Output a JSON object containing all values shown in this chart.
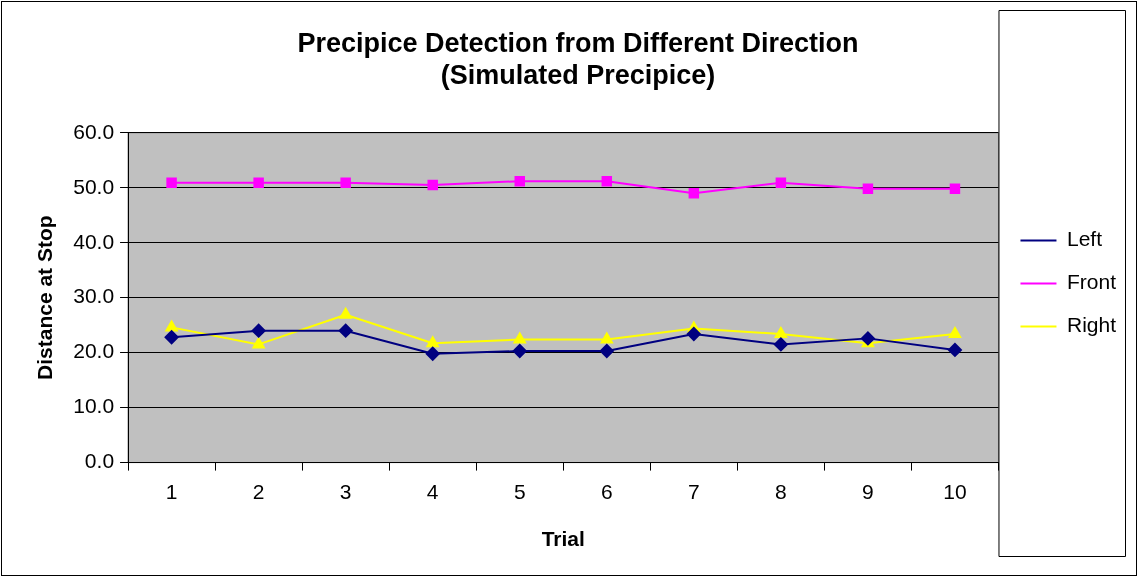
{
  "chart_data": {
    "type": "line",
    "title": [
      "Precipice Detection from Different Direction",
      "(Simulated Precipice)"
    ],
    "xlabel": "Trial",
    "ylabel": "Distance at Stop",
    "categories": [
      "1",
      "2",
      "3",
      "4",
      "5",
      "6",
      "7",
      "8",
      "9",
      "10"
    ],
    "series": [
      {
        "name": "Left",
        "color": "#000080",
        "marker": "diamond",
        "values": [
          22.8,
          24.0,
          24.0,
          19.8,
          20.3,
          20.3,
          23.4,
          21.5,
          22.6,
          20.5
        ]
      },
      {
        "name": "Front",
        "color": "#ff00ff",
        "marker": "square",
        "values": [
          50.9,
          50.9,
          50.9,
          50.5,
          51.2,
          51.2,
          49.0,
          50.9,
          49.8,
          49.8
        ]
      },
      {
        "name": "Right",
        "color": "#ffff00",
        "marker": "triangle",
        "values": [
          24.6,
          21.5,
          26.9,
          21.7,
          22.4,
          22.4,
          24.4,
          23.4,
          21.7,
          23.4
        ]
      }
    ],
    "ylim": [
      0,
      60
    ],
    "yticks": [
      {
        "value": 0,
        "label": "0.0"
      },
      {
        "value": 10,
        "label": "10.0"
      },
      {
        "value": 20,
        "label": "20.0"
      },
      {
        "value": 30,
        "label": "30.0"
      },
      {
        "value": 40,
        "label": "40.0"
      },
      {
        "value": 50,
        "label": "50.0"
      },
      {
        "value": 60,
        "label": "60.0"
      }
    ],
    "grid": "y",
    "legend": "right"
  }
}
